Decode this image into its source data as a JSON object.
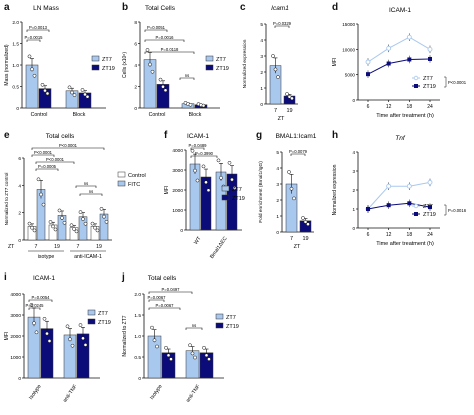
{
  "colors": {
    "zt7": "#a9c8ee",
    "zt19": "#0b0b7a",
    "control": "#ffffff",
    "fitc": "#a9c8ee",
    "grey": "#bfbfbf"
  },
  "chart_data": [
    {
      "panel": "a",
      "type": "bar",
      "title": "LN Mass",
      "ylabel": "Mass (normalized)",
      "categories": [
        "Control",
        "Block"
      ],
      "series": [
        {
          "name": "ZT7",
          "values": [
            1.0,
            0.4
          ]
        },
        {
          "name": "ZT19",
          "values": [
            0.45,
            0.35
          ]
        }
      ],
      "ylim": [
        0,
        2.0
      ],
      "yticks": [
        "0",
        "0.5",
        "1.0",
        "1.5",
        "2.0"
      ],
      "annotations": [
        "P=0.0013",
        "P=0.0015"
      ],
      "legend": "right"
    },
    {
      "panel": "b",
      "type": "bar",
      "title": "Total Cells",
      "ylabel": "Cells (x10⁶)",
      "categories": [
        "Control",
        "Block"
      ],
      "series": [
        {
          "name": "ZT7",
          "values": [
            4.5,
            0.4
          ]
        },
        {
          "name": "ZT19",
          "values": [
            2.2,
            0.3
          ]
        }
      ],
      "ylim": [
        0,
        8
      ],
      "yticks": [
        "0",
        "2",
        "4",
        "6",
        "8"
      ],
      "annotations": [
        "P=0.0051",
        "P=0.0016",
        "P=0.0118",
        "ns"
      ],
      "legend": "right"
    },
    {
      "panel": "c",
      "type": "bar",
      "title": "Icam1",
      "ylabel": "Normalized expression",
      "categories": [
        "7",
        "19"
      ],
      "xlabel": "ZT",
      "series": [
        {
          "name": "",
          "values": [
            2.4,
            0.5
          ]
        }
      ],
      "ylim": [
        0,
        5
      ],
      "yticks": [
        "0",
        "1",
        "2",
        "3",
        "4",
        "5"
      ],
      "annotations": [
        "P=0.0329"
      ]
    },
    {
      "panel": "d",
      "type": "line",
      "title": "ICAM-1",
      "ylabel": "MFI",
      "xlabel": "Time after treatment (h)",
      "x": [
        6,
        12,
        18,
        24
      ],
      "series": [
        {
          "name": "ZT7",
          "values": [
            7500,
            10200,
            12400,
            10000
          ]
        },
        {
          "name": "ZT19",
          "values": [
            5100,
            7200,
            8000,
            8100
          ]
        }
      ],
      "ylim": [
        0,
        15000
      ],
      "yticks": [
        "0",
        "5000",
        "10000",
        "15000"
      ],
      "annotations": [
        "P<0.0001"
      ],
      "legend": "bottom-right"
    },
    {
      "panel": "e",
      "type": "bar",
      "title": "Total cells",
      "ylabel": "Normalized to ZT7 control",
      "xlabel": "ZT",
      "categories": [
        "7",
        "19",
        "7",
        "19"
      ],
      "group_labels": [
        "isotype",
        "anti-ICAM-1"
      ],
      "series": [
        {
          "name": "Control",
          "values": [
            1.0,
            1.1,
            0.9,
            1.0
          ]
        },
        {
          "name": "FITC",
          "values": [
            3.7,
            1.8,
            1.7,
            1.9
          ]
        }
      ],
      "ylim": [
        0,
        6
      ],
      "yticks": [
        "0",
        "2",
        "4",
        "6"
      ],
      "annotations": [
        "P<0.0001",
        "P<0.0001",
        "P<0.0001",
        "P=0.0005",
        "ns",
        "ns"
      ],
      "legend": "right"
    },
    {
      "panel": "f",
      "type": "bar",
      "title": "ICAM-1",
      "ylabel": "MFI",
      "categories": [
        "WT",
        "Bmal1ΔEC"
      ],
      "series": [
        {
          "name": "ZT7",
          "values": [
            3300,
            2900
          ]
        },
        {
          "name": "ZT19",
          "values": [
            2650,
            2800
          ]
        }
      ],
      "ylim": [
        0,
        4000
      ],
      "yticks": [
        "0",
        "1000",
        "2000",
        "3000",
        "4000"
      ],
      "annotations": [
        "P=0.0489",
        "P=0.3990"
      ],
      "legend": "right"
    },
    {
      "panel": "g",
      "type": "bar",
      "title": "BMAL1:Icam1",
      "ylabel": "Fold enrichment (Bmal1/IgG)",
      "categories": [
        "7",
        "19"
      ],
      "xlabel": "ZT",
      "series": [
        {
          "name": "",
          "values": [
            3.0,
            0.7
          ]
        }
      ],
      "ylim": [
        0,
        5
      ],
      "yticks": [
        "0",
        "1",
        "2",
        "3",
        "4",
        "5"
      ],
      "annotations": [
        "P=0.0079"
      ]
    },
    {
      "panel": "h",
      "type": "line",
      "title": "Tnf",
      "ylabel": "Normalized expression",
      "xlabel": "Time after treatment (h)",
      "x": [
        6,
        12,
        18,
        24
      ],
      "series": [
        {
          "name": "ZT7",
          "values": [
            1.0,
            2.2,
            2.2,
            2.4
          ]
        },
        {
          "name": "ZT19",
          "values": [
            1.0,
            1.2,
            1.3,
            1.1
          ]
        }
      ],
      "ylim": [
        0,
        4
      ],
      "yticks": [
        "0",
        "1",
        "2",
        "3",
        "4"
      ],
      "annotations": [
        "P=0.0016"
      ],
      "legend": "bottom-right"
    },
    {
      "panel": "i",
      "type": "bar",
      "title": "ICAM-1",
      "ylabel": "MFI",
      "categories": [
        "Isotype",
        "anti-TNF"
      ],
      "series": [
        {
          "name": "ZT7",
          "values": [
            2900,
            2050
          ]
        },
        {
          "name": "ZT19",
          "values": [
            2350,
            2100
          ]
        }
      ],
      "ylim": [
        0,
        4000
      ],
      "yticks": [
        "0",
        "1000",
        "2000",
        "3000",
        "4000"
      ],
      "annotations": [
        "P=0.0054",
        "P=0.0245"
      ],
      "legend": "right"
    },
    {
      "panel": "j",
      "type": "bar",
      "title": "Total cells",
      "ylabel": "Normalized to ZT7",
      "categories": [
        "Isotype",
        "anti-TNF"
      ],
      "series": [
        {
          "name": "ZT7",
          "values": [
            1.0,
            0.65
          ]
        },
        {
          "name": "ZT19",
          "values": [
            0.6,
            0.6
          ]
        }
      ],
      "ylim": [
        0,
        2.0
      ],
      "yticks": [
        "0",
        "0.5",
        "1.0",
        "1.5",
        "2.0"
      ],
      "annotations": [
        "P=0.0497",
        "P=0.0067",
        "P=0.0067",
        "ns"
      ],
      "legend": "right"
    }
  ]
}
